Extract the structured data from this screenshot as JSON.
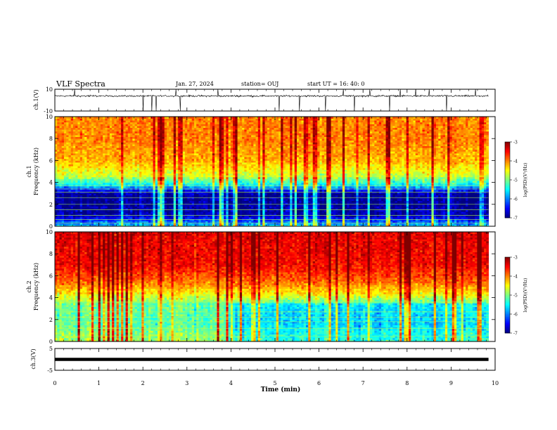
{
  "header": {
    "title": "VLF Spectra",
    "date": "Jan. 27, 2024",
    "station": "station= OUJ",
    "start": "start UT =  16: 40: 0"
  },
  "chart_data": [
    {
      "id": "ch1-waveform",
      "type": "line",
      "ylabel": "ch.1(V)",
      "ylim": [
        -10,
        10
      ],
      "yticks": [
        10,
        -10
      ],
      "xlim": [
        0,
        10
      ],
      "baseline": 3.8,
      "noise_amplitude": 1.2,
      "spike_times": [
        0.45,
        2.0,
        2.2,
        2.3,
        2.75,
        2.85,
        3.7,
        5.1,
        5.55,
        6.15,
        6.55,
        6.8,
        7.15,
        7.6,
        7.85,
        8.2,
        8.5,
        8.9,
        9.55
      ],
      "end_time": 9.85
    },
    {
      "id": "ch1-spectrogram",
      "type": "heatmap",
      "ylabel": "ch.1",
      "ylabel2": "Frequency (kHz)",
      "ylim": [
        0,
        10
      ],
      "yticks": [
        0,
        2,
        4,
        6,
        8,
        10
      ],
      "xlim": [
        0,
        10
      ],
      "end_time": 9.85,
      "colorbar": {
        "label": "log(PSD)(V²/Hz)",
        "range": [
          -7,
          -3
        ],
        "ticks": [
          -3,
          -4,
          -5,
          -6,
          -7
        ]
      },
      "profile": [
        [
          0,
          -5.6
        ],
        [
          0.4,
          -6.1
        ],
        [
          1.0,
          -6.8
        ],
        [
          2.0,
          -6.9
        ],
        [
          3.0,
          -6.9
        ],
        [
          3.8,
          -5.5
        ],
        [
          4.6,
          -4.7
        ],
        [
          6.0,
          -4.2
        ],
        [
          8.0,
          -4.0
        ],
        [
          10.0,
          -4.0
        ]
      ],
      "horizontal_lines_khz": [
        0.3,
        0.6,
        1.0,
        1.5,
        2.0,
        2.6,
        3.1,
        3.4,
        3.7
      ]
    },
    {
      "id": "ch2-spectrogram",
      "type": "heatmap",
      "ylabel": "ch.2",
      "ylabel2": "Frequency (kHz)",
      "ylim": [
        0,
        10
      ],
      "yticks": [
        0,
        2,
        4,
        6,
        8,
        10
      ],
      "xlim": [
        0,
        10
      ],
      "end_time": 9.85,
      "colorbar": {
        "label": "log(PSD)(V²/Hz)",
        "range": [
          -7,
          -3
        ],
        "ticks": [
          -3,
          -4,
          -5,
          -6,
          -7
        ]
      },
      "profile": [
        [
          0,
          -5.0
        ],
        [
          0.8,
          -5.1
        ],
        [
          1.6,
          -5.3
        ],
        [
          2.5,
          -5.3
        ],
        [
          3.5,
          -5.2
        ],
        [
          4.3,
          -4.5
        ],
        [
          5.5,
          -3.9
        ],
        [
          7.0,
          -3.5
        ],
        [
          10.0,
          -3.4
        ]
      ],
      "horizontal_lines_khz": [
        0.5,
        1.2,
        1.8,
        2.2,
        2.7,
        3.6
      ]
    },
    {
      "id": "ch3-waveform",
      "type": "line",
      "ylabel": "ch.3(V)",
      "ylim": [
        -5,
        5
      ],
      "yticks": [
        5,
        -5
      ],
      "xlim": [
        0,
        10
      ],
      "value": 0,
      "end_time": 9.85
    }
  ],
  "x_axis": {
    "label": "Time (min)",
    "ticks": [
      0,
      1,
      2,
      3,
      4,
      5,
      6,
      7,
      8,
      9,
      10
    ]
  }
}
